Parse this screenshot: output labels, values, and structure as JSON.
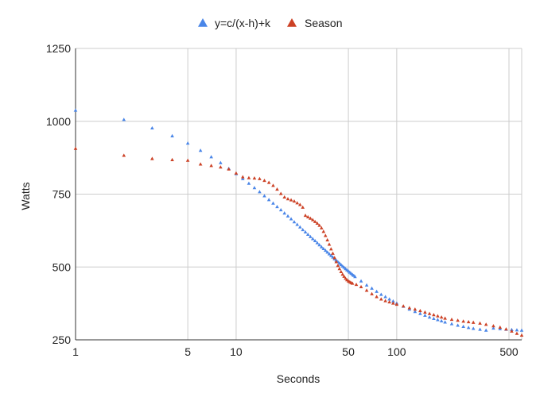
{
  "chart_data": {
    "type": "scatter",
    "x_scale": "log",
    "xlabel": "Seconds",
    "ylabel": "Watts",
    "xlim": [
      1,
      600
    ],
    "ylim": [
      250,
      1250
    ],
    "x_ticks": [
      1,
      5,
      10,
      50,
      100,
      500
    ],
    "y_ticks": [
      250,
      500,
      750,
      1000,
      1250
    ],
    "x_tick_labels": [
      "1",
      "5",
      "10",
      "50",
      "100",
      "500"
    ],
    "y_tick_labels": [
      "250",
      "500",
      "750",
      "1000",
      "1250"
    ],
    "legend_position": "top-center",
    "grid": true,
    "series": [
      {
        "name": "y=c/(x-h)+k",
        "color": "#4a86e8",
        "marker": "triangle",
        "points": [
          [
            1,
            1038
          ],
          [
            2,
            1006
          ],
          [
            3,
            977
          ],
          [
            4,
            950
          ],
          [
            5,
            925
          ],
          [
            6,
            900
          ],
          [
            7,
            878
          ],
          [
            8,
            858
          ],
          [
            9,
            838
          ],
          [
            10,
            820
          ],
          [
            11,
            803
          ],
          [
            12,
            787
          ],
          [
            13,
            772
          ],
          [
            14,
            758
          ],
          [
            15,
            744
          ],
          [
            16,
            731
          ],
          [
            17,
            719
          ],
          [
            18,
            707
          ],
          [
            19,
            696
          ],
          [
            20,
            685
          ],
          [
            21,
            675
          ],
          [
            22,
            665
          ],
          [
            23,
            655
          ],
          [
            24,
            646
          ],
          [
            25,
            637
          ],
          [
            26,
            628
          ],
          [
            27,
            620
          ],
          [
            28,
            612
          ],
          [
            29,
            604
          ],
          [
            30,
            597
          ],
          [
            31,
            590
          ],
          [
            32,
            583
          ],
          [
            33,
            576
          ],
          [
            34,
            569
          ],
          [
            35,
            563
          ],
          [
            36,
            557
          ],
          [
            37,
            551
          ],
          [
            38,
            545
          ],
          [
            39,
            539
          ],
          [
            40,
            534
          ],
          [
            41,
            528
          ],
          [
            42,
            523
          ],
          [
            43,
            518
          ],
          [
            44,
            513
          ],
          [
            45,
            508
          ],
          [
            46,
            503
          ],
          [
            47,
            499
          ],
          [
            48,
            494
          ],
          [
            49,
            490
          ],
          [
            50,
            486
          ],
          [
            51,
            482
          ],
          [
            52,
            478
          ],
          [
            53,
            474
          ],
          [
            54,
            471
          ],
          [
            55,
            467
          ],
          [
            60,
            452
          ],
          [
            65,
            438
          ],
          [
            70,
            427
          ],
          [
            75,
            416
          ],
          [
            80,
            406
          ],
          [
            85,
            398
          ],
          [
            90,
            390
          ],
          [
            95,
            383
          ],
          [
            100,
            376
          ],
          [
            110,
            365
          ],
          [
            120,
            355
          ],
          [
            130,
            347
          ],
          [
            140,
            340
          ],
          [
            150,
            334
          ],
          [
            160,
            328
          ],
          [
            170,
            323
          ],
          [
            180,
            319
          ],
          [
            190,
            315
          ],
          [
            200,
            311
          ],
          [
            220,
            305
          ],
          [
            240,
            300
          ],
          [
            260,
            296
          ],
          [
            280,
            292
          ],
          [
            300,
            289
          ],
          [
            330,
            286
          ],
          [
            360,
            283
          ],
          [
            400,
            290
          ],
          [
            440,
            288
          ],
          [
            480,
            286
          ],
          [
            520,
            285
          ],
          [
            560,
            284
          ],
          [
            600,
            283
          ]
        ]
      },
      {
        "name": "Season",
        "color": "#cc4125",
        "marker": "triangle",
        "points": [
          [
            1,
            907
          ],
          [
            2,
            883
          ],
          [
            3,
            872
          ],
          [
            4,
            868
          ],
          [
            5,
            866
          ],
          [
            6,
            853
          ],
          [
            7,
            848
          ],
          [
            8,
            843
          ],
          [
            9,
            836
          ],
          [
            10,
            822
          ],
          [
            11,
            809
          ],
          [
            12,
            806
          ],
          [
            13,
            805
          ],
          [
            14,
            803
          ],
          [
            15,
            797
          ],
          [
            16,
            790
          ],
          [
            17,
            780
          ],
          [
            18,
            767
          ],
          [
            19,
            752
          ],
          [
            20,
            740
          ],
          [
            21,
            734
          ],
          [
            22,
            730
          ],
          [
            23,
            726
          ],
          [
            24,
            720
          ],
          [
            25,
            714
          ],
          [
            26,
            705
          ],
          [
            27,
            677
          ],
          [
            28,
            672
          ],
          [
            29,
            667
          ],
          [
            30,
            662
          ],
          [
            31,
            656
          ],
          [
            32,
            650
          ],
          [
            33,
            643
          ],
          [
            34,
            634
          ],
          [
            35,
            622
          ],
          [
            36,
            608
          ],
          [
            37,
            593
          ],
          [
            38,
            578
          ],
          [
            39,
            562
          ],
          [
            40,
            547
          ],
          [
            41,
            532
          ],
          [
            42,
            518
          ],
          [
            43,
            505
          ],
          [
            44,
            494
          ],
          [
            45,
            484
          ],
          [
            46,
            475
          ],
          [
            47,
            468
          ],
          [
            48,
            461
          ],
          [
            49,
            456
          ],
          [
            50,
            452
          ],
          [
            51,
            449
          ],
          [
            52,
            446
          ],
          [
            53,
            444
          ],
          [
            56,
            440
          ],
          [
            60,
            432
          ],
          [
            65,
            420
          ],
          [
            70,
            408
          ],
          [
            75,
            398
          ],
          [
            80,
            390
          ],
          [
            85,
            384
          ],
          [
            90,
            380
          ],
          [
            95,
            376
          ],
          [
            100,
            372
          ],
          [
            110,
            366
          ],
          [
            120,
            360
          ],
          [
            130,
            355
          ],
          [
            140,
            350
          ],
          [
            150,
            345
          ],
          [
            160,
            340
          ],
          [
            170,
            336
          ],
          [
            180,
            332
          ],
          [
            190,
            328
          ],
          [
            200,
            324
          ],
          [
            220,
            320
          ],
          [
            240,
            317
          ],
          [
            260,
            314
          ],
          [
            280,
            312
          ],
          [
            300,
            310
          ],
          [
            330,
            307
          ],
          [
            360,
            303
          ],
          [
            400,
            298
          ],
          [
            440,
            293
          ],
          [
            480,
            287
          ],
          [
            520,
            280
          ],
          [
            560,
            272
          ],
          [
            600,
            266
          ]
        ]
      }
    ]
  }
}
